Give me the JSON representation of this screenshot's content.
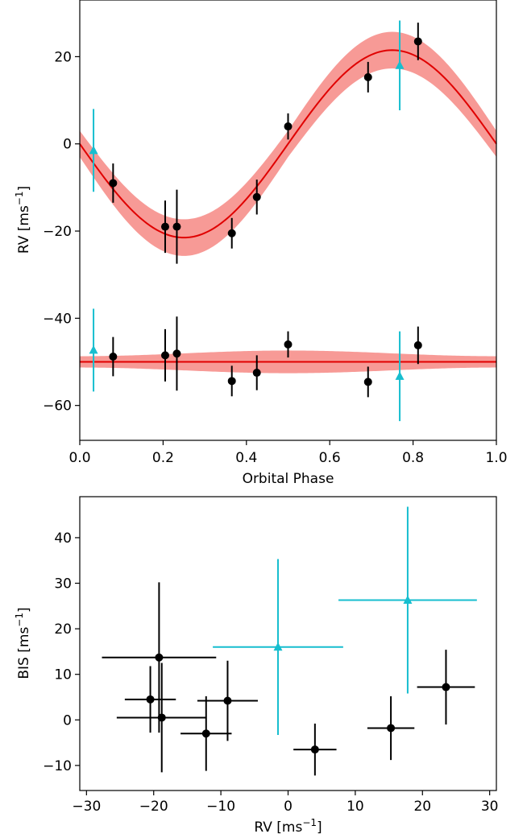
{
  "chart_data": [
    {
      "type": "line",
      "xlabel": "Orbital Phase",
      "ylabel": "RV [ms",
      "ylabel_sup": "−1",
      "ylabel_close": "]",
      "xlim": [
        0.0,
        1.0
      ],
      "ylim": [
        -68,
        33
      ],
      "xticks": [
        "0.0",
        "0.2",
        "0.4",
        "0.6",
        "0.8",
        "1.0"
      ],
      "xtick_values": [
        0.0,
        0.2,
        0.4,
        0.6,
        0.8,
        1.0
      ],
      "yticks": [
        "20",
        "0",
        "−20",
        "−40",
        "−60"
      ],
      "ytick_values": [
        20,
        0,
        -20,
        -40,
        -60
      ],
      "model_curves": [
        {
          "name": "",
          "kind": "sine",
          "amplitude": 21.5,
          "offset": 0,
          "band_halfwidth": 3.0,
          "band_peak_halfwidth": 4.2,
          "color": "#e00000",
          "band_color": "#f79a96"
        },
        {
          "name": "",
          "kind": "flat",
          "offset": -50,
          "band_halfwidth": 1.3,
          "band_peak_halfwidth": 2.6,
          "color": "#e00000",
          "band_color": "#f79a96"
        }
      ],
      "series": [
        {
          "name": "",
          "marker": "circle",
          "color": "#000000",
          "points": [
            {
              "x": 0.08,
              "y": -9,
              "err": 4.5
            },
            {
              "x": 0.205,
              "y": -19,
              "err": 6
            },
            {
              "x": 0.233,
              "y": -19,
              "err": 8.5
            },
            {
              "x": 0.365,
              "y": -20.5,
              "err": 3.5
            },
            {
              "x": 0.425,
              "y": -12.2,
              "err": 4
            },
            {
              "x": 0.5,
              "y": 4,
              "err": 3
            },
            {
              "x": 0.692,
              "y": 15.3,
              "err": 3.5
            },
            {
              "x": 0.812,
              "y": 23.5,
              "err": 4.3
            },
            {
              "x": 0.08,
              "y": -48.8,
              "err": 4.5
            },
            {
              "x": 0.205,
              "y": -48.5,
              "err": 6
            },
            {
              "x": 0.233,
              "y": -48.1,
              "err": 8.5
            },
            {
              "x": 0.365,
              "y": -54.4,
              "err": 3.5
            },
            {
              "x": 0.425,
              "y": -52.5,
              "err": 4
            },
            {
              "x": 0.5,
              "y": -46,
              "err": 3
            },
            {
              "x": 0.692,
              "y": -54.6,
              "err": 3.5
            },
            {
              "x": 0.812,
              "y": -46.2,
              "err": 4.3
            }
          ]
        },
        {
          "name": "",
          "marker": "triangle",
          "color": "#17becf",
          "points": [
            {
              "x": 0.033,
              "y": -1.5,
              "err": 9.5
            },
            {
              "x": 0.768,
              "y": 18,
              "err": 10.3
            },
            {
              "x": 0.033,
              "y": -47.3,
              "err": 9.5
            },
            {
              "x": 0.768,
              "y": -53.3,
              "err": 10.3
            }
          ]
        }
      ]
    },
    {
      "type": "scatter",
      "xlabel": "RV [ms",
      "xlabel_sup": "−1",
      "xlabel_close": "]",
      "ylabel": "BIS [ms",
      "ylabel_sup": "−1",
      "ylabel_close": "]",
      "xlim": [
        -31,
        31
      ],
      "ylim": [
        -15.5,
        49
      ],
      "xticks": [
        "−30",
        "−20",
        "−10",
        "0",
        "10",
        "20",
        "30"
      ],
      "xtick_values": [
        -30,
        -20,
        -10,
        0,
        10,
        20,
        30
      ],
      "yticks": [
        "−10",
        "0",
        "10",
        "20",
        "30",
        "40"
      ],
      "ytick_values": [
        -10,
        0,
        10,
        20,
        30,
        40
      ],
      "series": [
        {
          "name": "",
          "marker": "circle",
          "color": "#000000",
          "points": [
            {
              "x": -19.2,
              "y": 13.7,
              "xerr": 8.5,
              "yerr": 16.5
            },
            {
              "x": -20.5,
              "y": 4.5,
              "xerr": 3.8,
              "yerr": 7.3
            },
            {
              "x": -18.8,
              "y": 0.5,
              "xerr": 6.7,
              "yerr": 12
            },
            {
              "x": -9,
              "y": 4.2,
              "xerr": 4.5,
              "yerr": 8.8
            },
            {
              "x": -12.2,
              "y": -3,
              "xerr": 3.8,
              "yerr": 8.2
            },
            {
              "x": 4,
              "y": -6.5,
              "xerr": 3.2,
              "yerr": 5.7
            },
            {
              "x": 15.3,
              "y": -1.8,
              "xerr": 3.5,
              "yerr": 7
            },
            {
              "x": 23.5,
              "y": 7.2,
              "xerr": 4.3,
              "yerr": 8.2
            }
          ]
        },
        {
          "name": "",
          "marker": "triangle",
          "color": "#17becf",
          "points": [
            {
              "x": -1.5,
              "y": 16,
              "xerr": 9.7,
              "yerr": 19.3
            },
            {
              "x": 17.8,
              "y": 26.3,
              "xerr": 10.3,
              "yerr": 20.5
            }
          ]
        }
      ]
    }
  ]
}
